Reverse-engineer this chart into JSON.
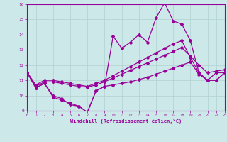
{
  "background_color": "#cce8e8",
  "grid_color": "#b0d0d0",
  "line_color": "#990099",
  "xlabel": "Windchill (Refroidissement éolien,°C)",
  "xlabel_color": "#990099",
  "tick_color": "#990099",
  "ylim": [
    9,
    16
  ],
  "xlim": [
    0,
    23
  ],
  "yticks": [
    9,
    10,
    11,
    12,
    13,
    14,
    15,
    16
  ],
  "xticks": [
    0,
    1,
    2,
    3,
    4,
    5,
    6,
    7,
    8,
    9,
    10,
    11,
    12,
    13,
    14,
    15,
    16,
    17,
    18,
    19,
    20,
    21,
    22,
    23
  ],
  "series": {
    "line_jagged_x": [
      0,
      1,
      2,
      3,
      4,
      5,
      6,
      7,
      8,
      9,
      10,
      11,
      12,
      13,
      14,
      15,
      16,
      17,
      18,
      19,
      20,
      21,
      22,
      23
    ],
    "line_jagged_y": [
      11.5,
      10.5,
      10.8,
      10.0,
      9.8,
      9.4,
      9.3,
      8.9,
      10.3,
      10.6,
      13.9,
      13.1,
      13.5,
      14.0,
      13.5,
      15.1,
      16.1,
      14.9,
      14.7,
      13.6,
      11.5,
      11.0,
      11.0,
      11.5
    ],
    "line_upper_x": [
      0,
      1,
      2,
      3,
      4,
      5,
      6,
      7,
      8,
      9,
      10,
      11,
      12,
      13,
      14,
      15,
      16,
      17,
      18,
      19,
      20,
      21,
      22,
      23
    ],
    "line_upper_y": [
      11.5,
      10.7,
      11.0,
      11.0,
      10.9,
      10.8,
      10.7,
      10.6,
      10.8,
      11.0,
      11.3,
      11.6,
      11.9,
      12.2,
      12.5,
      12.8,
      13.1,
      13.4,
      13.6,
      12.5,
      11.5,
      11.0,
      11.5,
      11.5
    ],
    "line_mid_x": [
      0,
      1,
      2,
      3,
      4,
      5,
      6,
      7,
      8,
      9,
      10,
      11,
      12,
      13,
      14,
      15,
      16,
      17,
      18,
      19,
      20,
      21,
      22,
      23
    ],
    "line_mid_y": [
      11.5,
      10.6,
      10.9,
      10.9,
      10.8,
      10.7,
      10.6,
      10.55,
      10.7,
      10.9,
      11.15,
      11.4,
      11.65,
      11.9,
      12.15,
      12.4,
      12.65,
      12.9,
      13.15,
      12.6,
      12.0,
      11.5,
      11.6,
      11.7
    ],
    "line_low_x": [
      0,
      1,
      2,
      3,
      4,
      5,
      6,
      7,
      8,
      9,
      10,
      11,
      12,
      13,
      14,
      15,
      16,
      17,
      18,
      19,
      20,
      21,
      22,
      23
    ],
    "line_low_y": [
      11.5,
      10.5,
      10.8,
      9.9,
      9.7,
      9.5,
      9.3,
      8.9,
      10.3,
      10.6,
      10.7,
      10.8,
      10.9,
      11.05,
      11.2,
      11.4,
      11.6,
      11.8,
      12.0,
      12.2,
      11.4,
      11.0,
      11.0,
      11.5
    ]
  }
}
